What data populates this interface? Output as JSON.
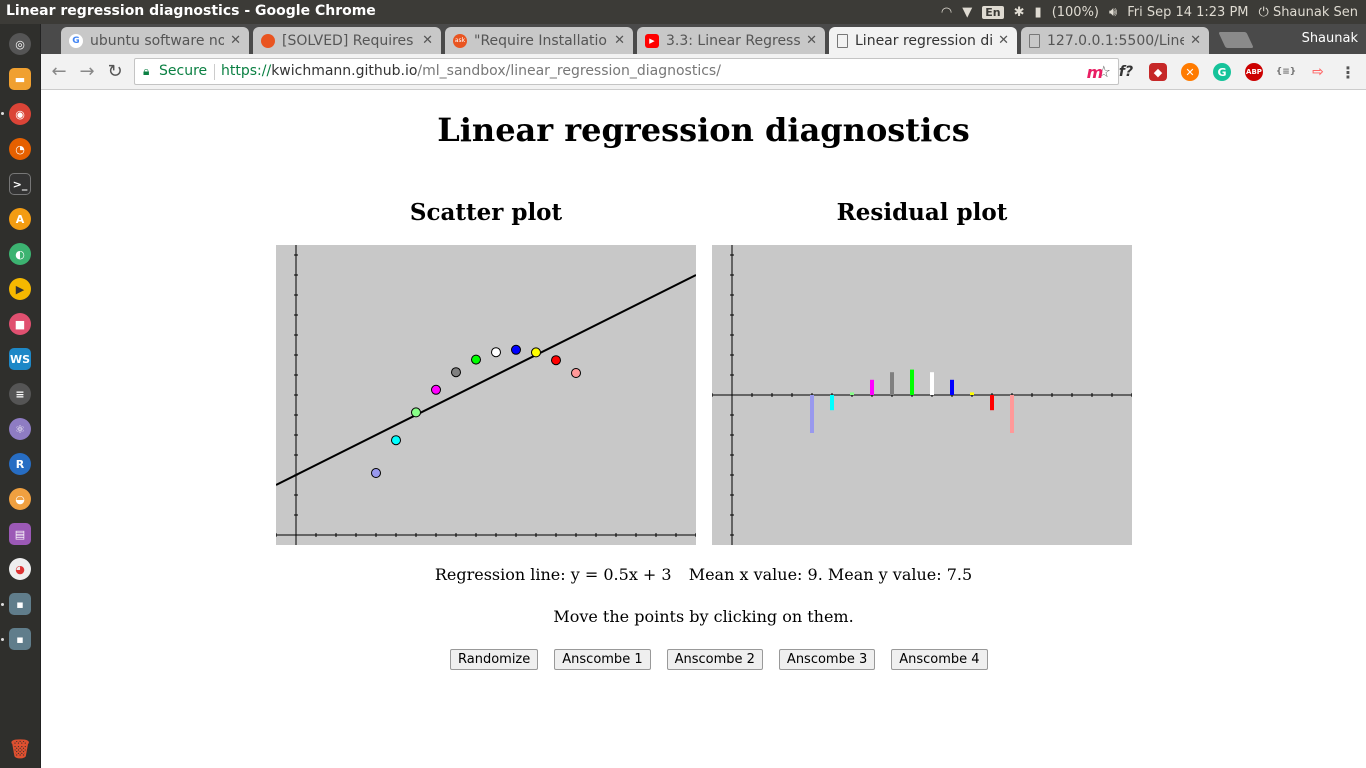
{
  "system": {
    "window_title": "Linear regression diagnostics - Google Chrome",
    "keyboard_layout": "En",
    "battery": "(100%)",
    "clock": "Fri Sep 14  1:23 PM",
    "user": "Shaunak Sen"
  },
  "browser": {
    "profile_name": "Shaunak",
    "tabs": [
      {
        "label": "ubuntu software no",
        "favicon_color": "#4285f4",
        "favicon": "G"
      },
      {
        "label": "[SOLVED] Requires",
        "favicon_color": "#e95420",
        "favicon": ""
      },
      {
        "label": "\"Require Installatio",
        "favicon_color": "#e95420",
        "favicon": "ask"
      },
      {
        "label": "3.3: Linear Regressi",
        "favicon_color": "#ff0000",
        "favicon": "▶"
      },
      {
        "label": "Linear regression di",
        "favicon_color": "#777777",
        "favicon": ""
      },
      {
        "label": "127.0.0.1:5500/Line",
        "favicon_color": "#777777",
        "favicon": ""
      }
    ],
    "secure_label": "Secure",
    "url_scheme": "https://",
    "url_host": "kwichmann.github.io",
    "url_path": "/ml_sandbox/linear_regression_diagnostics/"
  },
  "page": {
    "title": "Linear regression diagnostics",
    "scatter_title": "Scatter plot",
    "residual_title": "Residual plot",
    "regression_line_text": "Regression line: y = 0.5x + 3",
    "means_text": "Mean x value: 9. Mean y value: 7.5",
    "instructions": "Move the points by clicking on them.",
    "buttons": {
      "randomize": "Randomize",
      "anscombe1": "Anscombe 1",
      "anscombe2": "Anscombe 2",
      "anscombe3": "Anscombe 3",
      "anscombe4": "Anscombe 4"
    }
  },
  "chart_data": [
    {
      "type": "scatter",
      "title": "Scatter plot",
      "xlim": [
        -1,
        20
      ],
      "ylim": [
        -0.5,
        14.5
      ],
      "points": [
        {
          "x": 4,
          "y": 3.1,
          "color": "#9999ee"
        },
        {
          "x": 5,
          "y": 4.74,
          "color": "#00ffff"
        },
        {
          "x": 6,
          "y": 6.13,
          "color": "#88ff88"
        },
        {
          "x": 7,
          "y": 7.26,
          "color": "#ff00ff"
        },
        {
          "x": 8,
          "y": 8.14,
          "color": "#808080"
        },
        {
          "x": 9,
          "y": 8.77,
          "color": "#00ff00"
        },
        {
          "x": 10,
          "y": 9.14,
          "color": "#ffffff"
        },
        {
          "x": 11,
          "y": 9.26,
          "color": "#0000ff"
        },
        {
          "x": 12,
          "y": 9.13,
          "color": "#ffff00"
        },
        {
          "x": 13,
          "y": 8.74,
          "color": "#ff0000"
        },
        {
          "x": 14,
          "y": 8.1,
          "color": "#ff9999"
        }
      ],
      "regression_line": {
        "slope": 0.5,
        "intercept": 3
      }
    },
    {
      "type": "bar",
      "title": "Residual plot",
      "xlim": [
        -1,
        20
      ],
      "ylim": [
        -7.5,
        7.5
      ],
      "residuals": [
        {
          "x": 4,
          "residual": -1.9,
          "color": "#9999ee"
        },
        {
          "x": 5,
          "residual": -0.76,
          "color": "#00ffff"
        },
        {
          "x": 6,
          "residual": 0.13,
          "color": "#88ff88"
        },
        {
          "x": 7,
          "residual": 0.76,
          "color": "#ff00ff"
        },
        {
          "x": 8,
          "residual": 1.14,
          "color": "#808080"
        },
        {
          "x": 9,
          "residual": 1.27,
          "color": "#00ff00"
        },
        {
          "x": 10,
          "residual": 1.14,
          "color": "#ffffff"
        },
        {
          "x": 11,
          "residual": 0.76,
          "color": "#0000ff"
        },
        {
          "x": 12,
          "residual": 0.13,
          "color": "#ffff00"
        },
        {
          "x": 13,
          "residual": -0.76,
          "color": "#ff0000"
        },
        {
          "x": 14,
          "residual": -1.9,
          "color": "#ff9999"
        }
      ]
    }
  ]
}
